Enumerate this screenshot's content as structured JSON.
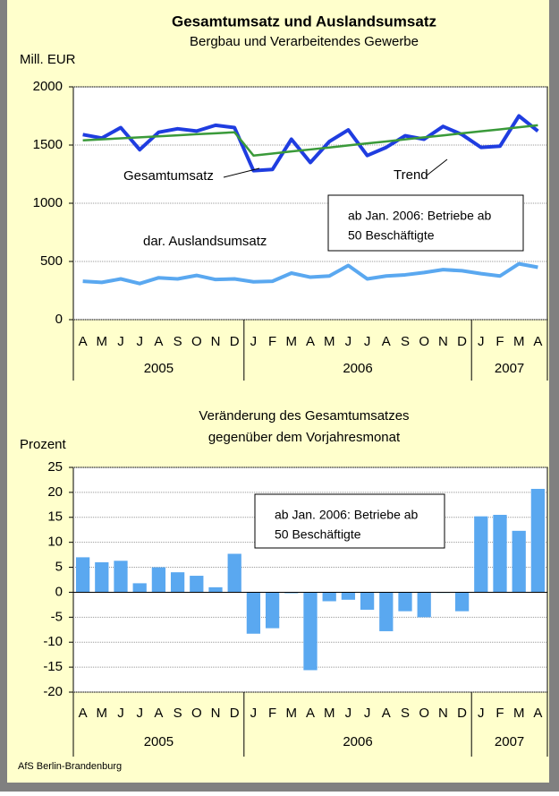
{
  "chart_data": [
    {
      "type": "line",
      "title": "Gesamtumsatz und Auslandsumsatz",
      "subtitle": "Bergbau und Verarbeitendes Gewerbe",
      "ylabel": "Mill. EUR",
      "categories": [
        "A",
        "M",
        "J",
        "J",
        "A",
        "S",
        "O",
        "N",
        "D",
        "J",
        "F",
        "M",
        "A",
        "M",
        "J",
        "J",
        "A",
        "S",
        "O",
        "N",
        "D",
        "J",
        "F",
        "M",
        "A"
      ],
      "year_groups": [
        {
          "label": "2005",
          "months": 9
        },
        {
          "label": "2006",
          "months": 12
        },
        {
          "label": "2007",
          "months": 4
        }
      ],
      "series": [
        {
          "name": "Gesamtumsatz",
          "color": "#1f3de0",
          "values": [
            1590,
            1560,
            1650,
            1460,
            1610,
            1640,
            1620,
            1670,
            1650,
            1280,
            1290,
            1550,
            1350,
            1530,
            1630,
            1410,
            1480,
            1580,
            1550,
            1660,
            1590,
            1480,
            1490,
            1750,
            1620
          ]
        },
        {
          "name": "Trend",
          "color": "#3a9a3a",
          "values": [
            1540,
            1549,
            1558,
            1566,
            1575,
            1584,
            1593,
            1601,
            1610,
            1410,
            1427,
            1445,
            1462,
            1479,
            1497,
            1514,
            1531,
            1549,
            1566,
            1583,
            1601,
            1618,
            1635,
            1653,
            1670
          ]
        },
        {
          "name": "dar. Auslandsumsatz",
          "color": "#5aa8f0",
          "values": [
            330,
            320,
            350,
            310,
            360,
            350,
            380,
            345,
            350,
            325,
            330,
            400,
            365,
            375,
            465,
            350,
            375,
            385,
            405,
            430,
            420,
            395,
            375,
            480,
            450
          ]
        }
      ],
      "annotation": [
        "ab Jan. 2006: Betriebe ab",
        "50 Beschäftigte"
      ],
      "ylim": [
        0,
        2000
      ],
      "yticks": [
        0,
        500,
        1000,
        1500,
        2000
      ],
      "grid": true
    },
    {
      "type": "bar",
      "title": [
        "Veränderung des Gesamtumsatzes",
        "gegenüber dem Vorjahresmonat"
      ],
      "ylabel": "Prozent",
      "categories": [
        "A",
        "M",
        "J",
        "J",
        "A",
        "S",
        "O",
        "N",
        "D",
        "J",
        "F",
        "M",
        "A",
        "M",
        "J",
        "J",
        "A",
        "S",
        "O",
        "N",
        "D",
        "J",
        "F",
        "M",
        "A"
      ],
      "year_groups": [
        {
          "label": "2005",
          "months": 9
        },
        {
          "label": "2006",
          "months": 12
        },
        {
          "label": "2007",
          "months": 4
        }
      ],
      "values": [
        7,
        6,
        6.3,
        1.8,
        5,
        4,
        3.3,
        1,
        7.7,
        -8.3,
        -7.2,
        -0.2,
        -15.6,
        -1.8,
        -1.5,
        -3.5,
        -7.8,
        -3.8,
        -5,
        0,
        -3.8,
        15.2,
        15.5,
        12.3,
        20.7
      ],
      "color": "#5aa8f0",
      "annotation": [
        "ab Jan. 2006: Betriebe ab",
        "50 Beschäftigte"
      ],
      "ylim": [
        -20,
        25
      ],
      "yticks": [
        -20,
        -15,
        -10,
        -5,
        0,
        5,
        10,
        15,
        20,
        25
      ],
      "grid": true
    }
  ],
  "footer": "AfS Berlin-Brandenburg"
}
